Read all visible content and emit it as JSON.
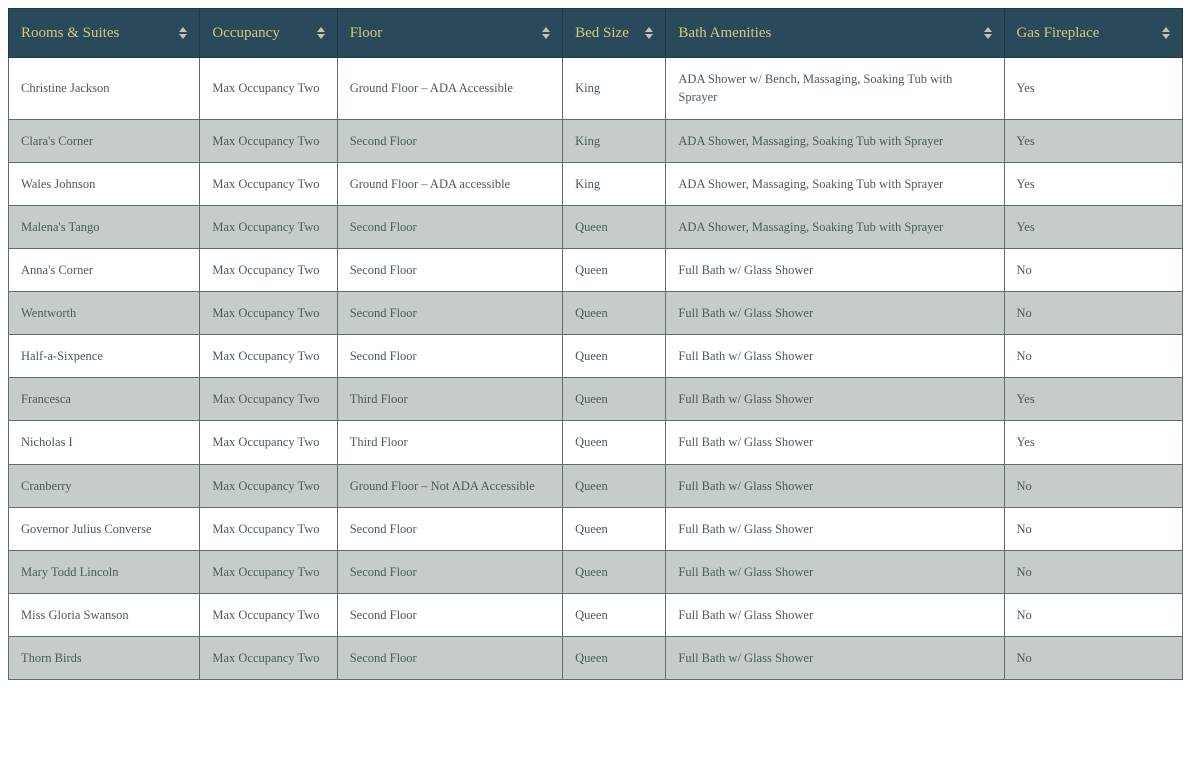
{
  "table": {
    "header_bg": "#2a4a5c",
    "header_text_color": "#d4c87a",
    "row_even_bg": "#c6cccb",
    "row_odd_bg": "#ffffff",
    "cell_text_color": "#4a5a5e",
    "border_color": "#5f6e73",
    "header_fontsize": 15,
    "cell_fontsize": 12.5,
    "columns": [
      {
        "label": "Rooms & Suites",
        "width": "16.3%"
      },
      {
        "label": "Occupancy",
        "width": "11.7%"
      },
      {
        "label": "Floor",
        "width": "19.2%"
      },
      {
        "label": "Bed Size",
        "width": "8.8%"
      },
      {
        "label": "Bath Amenities",
        "width": "28.8%"
      },
      {
        "label": "Gas Fireplace",
        "width": "15.2%"
      }
    ],
    "rows": [
      [
        "Christine Jackson",
        "Max Occupancy Two",
        "Ground Floor – ADA Accessible",
        "King",
        "ADA Shower w/ Bench, Massaging, Soaking Tub with Sprayer",
        "Yes"
      ],
      [
        "Clara's Corner",
        "Max Occupancy Two",
        "Second Floor",
        "King",
        "ADA Shower, Massaging, Soaking Tub with Sprayer",
        "Yes"
      ],
      [
        "Wales Johnson",
        "Max Occupancy Two",
        "Ground Floor – ADA accessible",
        "King",
        "ADA Shower, Massaging, Soaking Tub with Sprayer",
        "Yes"
      ],
      [
        "Malena's Tango",
        "Max Occupancy Two",
        "Second Floor",
        "Queen",
        "ADA Shower, Massaging, Soaking Tub with Sprayer",
        "Yes"
      ],
      [
        "Anna's Corner",
        "Max Occupancy Two",
        "Second Floor",
        "Queen",
        "Full Bath w/ Glass Shower",
        "No"
      ],
      [
        "Wentworth",
        "Max Occupancy Two",
        "Second Floor",
        "Queen",
        "Full Bath w/ Glass Shower",
        "No"
      ],
      [
        "Half-a-Sixpence",
        "Max Occupancy Two",
        "Second Floor",
        "Queen",
        "Full Bath w/ Glass Shower",
        "No"
      ],
      [
        "Francesca",
        "Max Occupancy Two",
        "Third Floor",
        "Queen",
        "Full Bath w/ Glass Shower",
        "Yes"
      ],
      [
        "Nicholas I",
        "Max Occupancy Two",
        "Third Floor",
        "Queen",
        "Full Bath w/ Glass Shower",
        "Yes"
      ],
      [
        "Cranberry",
        "Max Occupancy Two",
        "Ground Floor – Not ADA Accessible",
        "Queen",
        "Full Bath w/ Glass Shower",
        "No"
      ],
      [
        "Governor Julius Converse",
        "Max Occupancy Two",
        "Second Floor",
        "Queen",
        "Full Bath w/ Glass Shower",
        "No"
      ],
      [
        "Mary Todd Lincoln",
        "Max Occupancy Two",
        "Second Floor",
        "Queen",
        "Full Bath w/ Glass Shower",
        "No"
      ],
      [
        "Miss Gloria Swanson",
        "Max Occupancy Two",
        "Second Floor",
        "Queen",
        "Full Bath w/ Glass Shower",
        "No"
      ],
      [
        "Thorn Birds",
        "Max Occupancy Two",
        "Second Floor",
        "Queen",
        "Full Bath w/ Glass Shower",
        "No"
      ]
    ]
  }
}
